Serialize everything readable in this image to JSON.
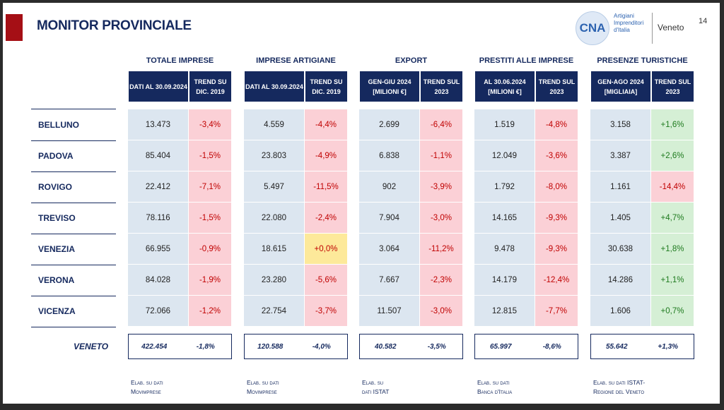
{
  "title": "MONITOR PROVINCIALE",
  "page_number": "14",
  "logo": {
    "mark": "CNA",
    "text": "Artigiani Imprenditori d'Italia",
    "region": "Veneto"
  },
  "groups": [
    {
      "title": "TOTALE IMPRESE",
      "h1": "DATI AL 30.09.2024",
      "h2": "TREND SU DIC. 2019",
      "total": "422.454",
      "total_trend": "-1,8%",
      "note1": "Elab. su dati",
      "note2": "Movimprese"
    },
    {
      "title": "IMPRESE ARTIGIANE",
      "h1": "DATI AL 30.09.2024",
      "h2": "TREND SU DIC. 2019",
      "total": "120.588",
      "total_trend": "-4,0%",
      "note1": "Elab. su dati",
      "note2": "Movimprese"
    },
    {
      "title": "EXPORT",
      "h1": "GEN-GIU 2024 [MILIONI €]",
      "h2": "TREND SUL 2023",
      "total": "40.582",
      "total_trend": "-3,5%",
      "note1": "Elab. su",
      "note2": "dati ISTAT"
    },
    {
      "title": "PRESTITI ALLE IMPRESE",
      "h1": "AL 30.06.2024 [MILIONI €]",
      "h2": "TREND SUL 2023",
      "total": "65.997",
      "total_trend": "-8,6%",
      "note1": "Elab. su dati",
      "note2": "Banca d'Italia"
    },
    {
      "title": "PRESENZE TURISTICHE",
      "h1": "GEN-AGO 2024 [MIGLIAIA]",
      "h2": "TREND SUL 2023",
      "total": "55.642",
      "total_trend": "+1,3%",
      "note1": "Elab. su dati ISTAT-",
      "note2": "Regione del Veneto"
    }
  ],
  "total_label": "VENETO",
  "rows": [
    {
      "name": "BELLUNO",
      "cells": [
        "13.473",
        "-3,4%",
        "4.559",
        "-4,4%",
        "2.699",
        "-6,4%",
        "1.519",
        "-4,8%",
        "3.158",
        "+1,6%"
      ]
    },
    {
      "name": "PADOVA",
      "cells": [
        "85.404",
        "-1,5%",
        "23.803",
        "-4,9%",
        "6.838",
        "-1,1%",
        "12.049",
        "-3,6%",
        "3.387",
        "+2,6%"
      ]
    },
    {
      "name": "ROVIGO",
      "cells": [
        "22.412",
        "-7,1%",
        "5.497",
        "-11,5%",
        "902",
        "-3,9%",
        "1.792",
        "-8,0%",
        "1.161",
        "-14,4%"
      ]
    },
    {
      "name": "TREVISO",
      "cells": [
        "78.116",
        "-1,5%",
        "22.080",
        "-2,4%",
        "7.904",
        "-3,0%",
        "14.165",
        "-9,3%",
        "1.405",
        "+4,7%"
      ]
    },
    {
      "name": "VENEZIA",
      "cells": [
        "66.955",
        "-0,9%",
        "18.615",
        "+0,0%",
        "3.064",
        "-11,2%",
        "9.478",
        "-9,3%",
        "30.638",
        "+1,8%"
      ]
    },
    {
      "name": "VERONA",
      "cells": [
        "84.028",
        "-1,9%",
        "23.280",
        "-5,6%",
        "7.667",
        "-2,3%",
        "14.179",
        "-12,4%",
        "14.286",
        "+1,1%"
      ]
    },
    {
      "name": "VICENZA",
      "cells": [
        "72.066",
        "-1,2%",
        "22.754",
        "-3,7%",
        "11.507",
        "-3,0%",
        "12.815",
        "-7,7%",
        "1.606",
        "+0,7%"
      ]
    }
  ]
}
